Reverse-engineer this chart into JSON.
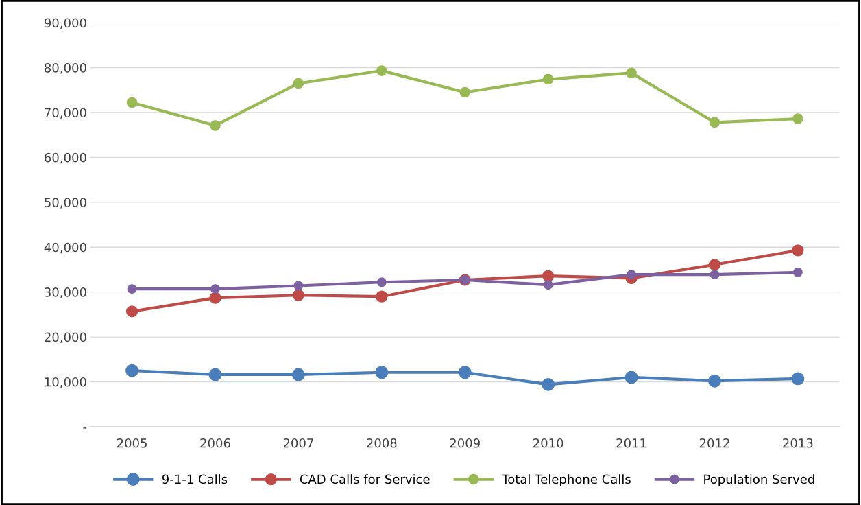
{
  "chart_data": {
    "type": "line",
    "categories": [
      "2005",
      "2006",
      "2007",
      "2008",
      "2009",
      "2010",
      "2011",
      "2012",
      "2013"
    ],
    "series": [
      {
        "name": "9-1-1 Calls",
        "color": "#4a7ebb",
        "values": [
          12500,
          11600,
          11600,
          12100,
          12100,
          9400,
          11000,
          10200,
          10700
        ]
      },
      {
        "name": "CAD Calls for Service",
        "color": "#be4b48",
        "values": [
          25700,
          28700,
          29300,
          29000,
          32700,
          33600,
          33100,
          36100,
          39300
        ]
      },
      {
        "name": "Total Telephone Calls",
        "color": "#98b954",
        "values": [
          72200,
          67100,
          76500,
          79300,
          74500,
          77400,
          78800,
          67800,
          68600
        ]
      },
      {
        "name": "Population Served",
        "color": "#7d60a0",
        "values": [
          30700,
          30700,
          31400,
          32200,
          32700,
          31600,
          33900,
          33900,
          34400
        ]
      }
    ],
    "ylim": [
      0,
      90000
    ],
    "yticks": [
      {
        "value": 0,
        "label": "-"
      },
      {
        "value": 10000,
        "label": "10,000"
      },
      {
        "value": 20000,
        "label": "20,000"
      },
      {
        "value": 30000,
        "label": "30,000"
      },
      {
        "value": 40000,
        "label": "40,000"
      },
      {
        "value": 50000,
        "label": "50,000"
      },
      {
        "value": 60000,
        "label": "60,000"
      },
      {
        "value": 70000,
        "label": "70,000"
      },
      {
        "value": 80000,
        "label": "80,000"
      },
      {
        "value": 90000,
        "label": "90,000"
      }
    ],
    "grid": "y",
    "legend": "bottom",
    "marker": "circle",
    "line_style": "solid"
  }
}
